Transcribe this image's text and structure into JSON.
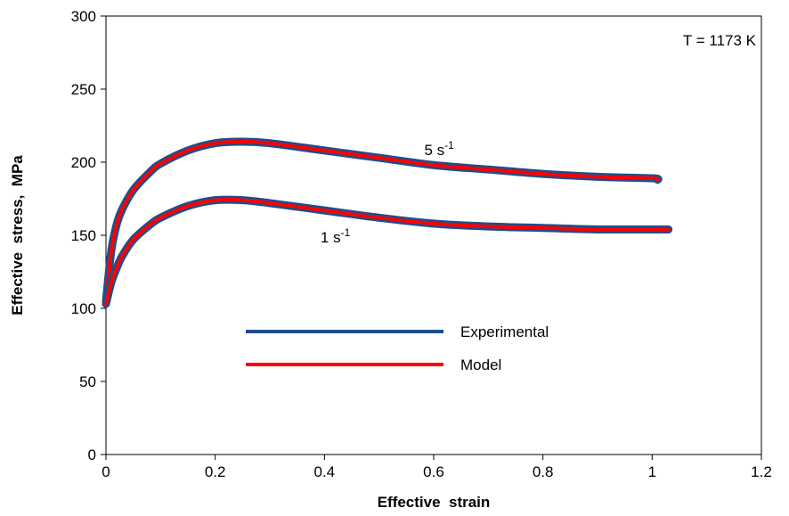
{
  "chart_data": {
    "type": "line",
    "xlabel": "Effective  strain",
    "ylabel": "Effective  stress,  MPa",
    "xlim": [
      0,
      1.2
    ],
    "ylim": [
      0,
      300
    ],
    "xticks": [
      "0",
      "0.2",
      "0.4",
      "0.6",
      "0.8",
      "1",
      "1.2"
    ],
    "yticks": [
      "0",
      "50",
      "100",
      "150",
      "200",
      "250",
      "300"
    ],
    "grid": false,
    "annotation": "T  =  1173 K",
    "curve_labels": [
      {
        "text": "5 s",
        "sup": "-1",
        "x": 0.61,
        "y": 205
      },
      {
        "text": "1 s",
        "sup": "-1",
        "x": 0.42,
        "y": 145
      }
    ],
    "legend": {
      "placement": "center",
      "entries": [
        {
          "name": "Experimental",
          "color": "#1F4E8C"
        },
        {
          "name": "Model",
          "color": "#FF0000"
        }
      ]
    },
    "series": [
      {
        "name": "Experimental",
        "rate": "5 s-1",
        "color": "#1F4E8C",
        "x": [
          0,
          0.01,
          0.02,
          0.03,
          0.05,
          0.08,
          0.1,
          0.15,
          0.2,
          0.25,
          0.3,
          0.4,
          0.5,
          0.6,
          0.7,
          0.8,
          0.9,
          1.0,
          1.01
        ],
        "y": [
          105,
          140,
          158,
          168,
          181,
          193,
          199,
          208,
          213,
          214,
          213,
          208,
          203,
          198,
          195,
          192,
          190,
          189,
          188
        ]
      },
      {
        "name": "Model",
        "rate": "5 s-1",
        "color": "#FF0000",
        "x": [
          0,
          0.01,
          0.02,
          0.03,
          0.05,
          0.08,
          0.1,
          0.15,
          0.2,
          0.25,
          0.3,
          0.4,
          0.5,
          0.6,
          0.7,
          0.8,
          0.9,
          1.0,
          1.01
        ],
        "y": [
          105,
          140,
          158,
          168,
          181,
          193,
          199,
          208,
          213,
          214,
          213,
          208,
          203,
          198,
          195,
          192,
          190,
          189,
          188
        ]
      },
      {
        "name": "Experimental",
        "rate": "1 s-1",
        "color": "#1F4E8C",
        "x": [
          0,
          0.01,
          0.02,
          0.03,
          0.05,
          0.08,
          0.1,
          0.15,
          0.2,
          0.25,
          0.3,
          0.4,
          0.5,
          0.6,
          0.7,
          0.8,
          0.9,
          1.0,
          1.03
        ],
        "y": [
          103,
          118,
          128,
          136,
          147,
          157,
          162,
          170,
          174,
          174,
          172,
          167,
          162,
          158,
          156,
          155,
          154,
          154,
          154
        ]
      },
      {
        "name": "Model",
        "rate": "1 s-1",
        "color": "#FF0000",
        "x": [
          0,
          0.01,
          0.02,
          0.03,
          0.05,
          0.08,
          0.1,
          0.15,
          0.2,
          0.25,
          0.3,
          0.4,
          0.5,
          0.6,
          0.7,
          0.8,
          0.9,
          1.0,
          1.03
        ],
        "y": [
          103,
          118,
          128,
          136,
          147,
          157,
          162,
          170,
          174,
          174,
          172,
          167,
          162,
          158,
          156,
          155,
          154,
          154,
          154
        ]
      }
    ]
  }
}
